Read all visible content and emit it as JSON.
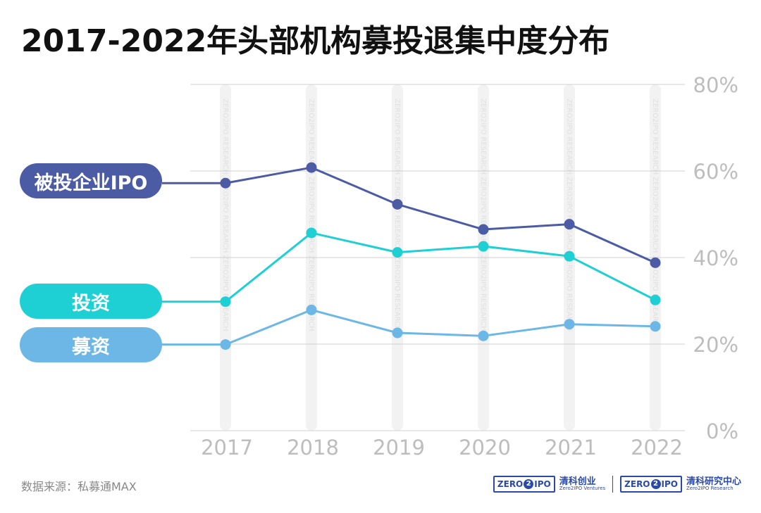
{
  "title": "2017-2022年头部机构募投退集中度分布",
  "source": "数据来源：私募通MAX",
  "watermark": "ZERO2IPO RESEARCH",
  "logos": [
    {
      "mark_zero": "ZERO",
      "mark_two": "2",
      "mark_ipo": "IPO",
      "name_cn": "清科创业",
      "name_en": "Zero2IPO Ventures",
      "icon": "zero2ipo-logo-icon"
    },
    {
      "mark_zero": "ZERO",
      "mark_two": "2",
      "mark_ipo": "IPO",
      "name_cn": "清科研究中心",
      "name_en": "Zero2IPO Research",
      "icon": "zero2ipo-logo-icon"
    }
  ],
  "chart_data": {
    "type": "line",
    "title": "2017-2022年头部机构募投退集中度分布",
    "x": [
      "2017",
      "2018",
      "2019",
      "2020",
      "2021",
      "2022"
    ],
    "ylim": [
      0,
      80
    ],
    "yticks": [
      "0%",
      "20%",
      "40%",
      "60%",
      "80%"
    ],
    "ytick_values": [
      0,
      20,
      40,
      60,
      80
    ],
    "y_axis_side": "right",
    "grid": true,
    "legend": "left",
    "series": [
      {
        "name": "被投企业IPO",
        "color": "#4b5ba4",
        "values": [
          57.2,
          60.8,
          52.3,
          46.5,
          47.7,
          38.8
        ]
      },
      {
        "name": "投资",
        "color": "#1ecfd4",
        "values": [
          29.8,
          45.7,
          41.2,
          42.6,
          40.3,
          30.2
        ]
      },
      {
        "name": "募资",
        "color": "#6cb7e6",
        "values": [
          19.9,
          27.9,
          22.6,
          21.9,
          24.6,
          24.1
        ]
      }
    ]
  }
}
